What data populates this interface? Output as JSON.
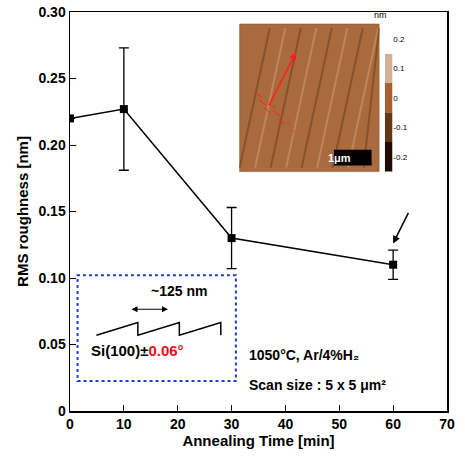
{
  "chart_data": {
    "type": "line",
    "x_label": "Annealing Time [min]",
    "y_label": "RMS roughness [nm]",
    "x": [
      0,
      10,
      30,
      60
    ],
    "values": [
      0.22,
      0.227,
      0.13,
      0.11
    ],
    "error": [
      0,
      0.046,
      0.023,
      0.011
    ],
    "color": "#000000",
    "marker": "square",
    "line_style": "solid",
    "xlim": [
      0,
      70
    ],
    "xticks": [
      0,
      10,
      20,
      30,
      40,
      50,
      60,
      70
    ],
    "ylim": [
      0,
      0.3
    ],
    "yticks": [
      0,
      0.05,
      {
        "value": 0.1,
        "label": "0.10"
      },
      0.15,
      {
        "value": 0.2,
        "label": "0.20"
      },
      0.25,
      {
        "value": 0.3,
        "label": "0.30"
      }
    ],
    "grid": false,
    "annotations": [
      "1050°C, Ar/4%H₂",
      "Scan size : 5 x 5 μm²"
    ],
    "schematic": {
      "period": "~125 nm",
      "substrate": "Si(100)±",
      "miscut": "0.06°",
      "miscut_color": "#e8101a"
    },
    "afm_inset": {
      "colorbar_title": "nm",
      "colorbar_ticks": [
        0.2,
        0.1,
        0,
        -0.1,
        -0.2
      ],
      "scale_bar": "1μm"
    }
  }
}
